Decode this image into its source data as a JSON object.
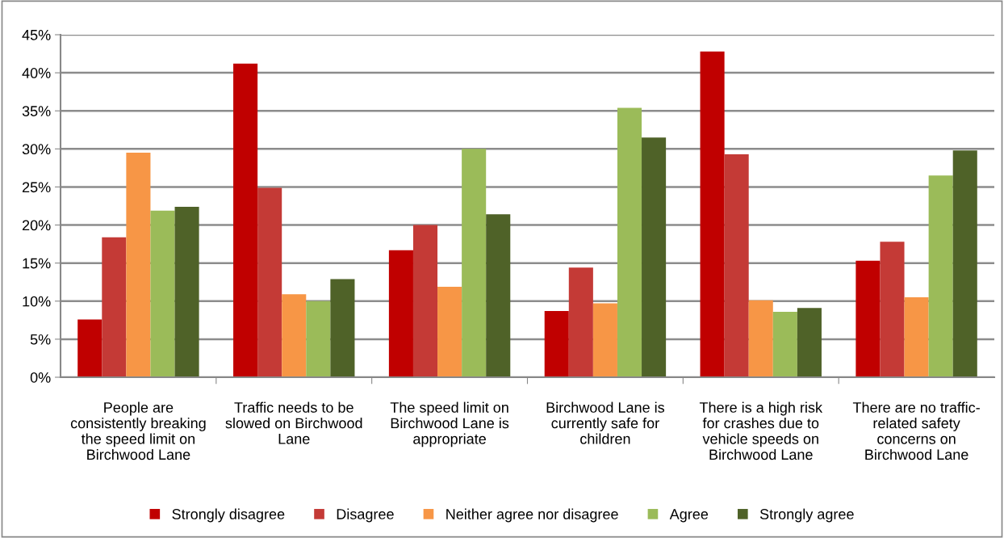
{
  "chart_data": {
    "type": "bar",
    "categories": [
      "People are\nconsistently breaking\nthe speed limit on\nBirchwood Lane",
      "Traffic needs to be\nslowed on Birchwood\nLane",
      "The speed limit on\nBirchwood Lane is\nappropriate",
      "Birchwood Lane is\ncurrently safe for\nchildren",
      "There is a high risk\nfor crashes due to\nvehicle speeds on\nBirchwood Lane",
      "There are no traffic-\nrelated safety\nconcerns on\nBirchwood Lane"
    ],
    "series": [
      {
        "name": "Strongly disagree",
        "color": "#c00000",
        "values": [
          7.6,
          41.2,
          16.7,
          8.7,
          42.8,
          15.3
        ]
      },
      {
        "name": "Disagree",
        "color": "#c43a36",
        "values": [
          18.4,
          24.9,
          20.0,
          14.4,
          29.3,
          17.8
        ]
      },
      {
        "name": "Neither agree nor disagree",
        "color": "#f79646",
        "values": [
          29.5,
          10.9,
          11.9,
          9.7,
          10.1,
          10.5
        ]
      },
      {
        "name": "Agree",
        "color": "#9bbb59",
        "values": [
          21.9,
          10.0,
          30.0,
          35.4,
          8.6,
          26.5
        ]
      },
      {
        "name": "Strongly agree",
        "color": "#4f6228",
        "values": [
          22.4,
          12.9,
          21.4,
          31.5,
          9.1,
          29.8
        ]
      }
    ],
    "ylim": [
      0,
      45
    ],
    "yticks": [
      {
        "value": 0,
        "label": "0%"
      },
      {
        "value": 5,
        "label": "5%"
      },
      {
        "value": 10,
        "label": "10%"
      },
      {
        "value": 15,
        "label": "15%"
      },
      {
        "value": 20,
        "label": "20%"
      },
      {
        "value": 25,
        "label": "25%"
      },
      {
        "value": 30,
        "label": "30%"
      },
      {
        "value": 35,
        "label": "35%"
      },
      {
        "value": 40,
        "label": "40%"
      },
      {
        "value": 45,
        "label": "45%"
      }
    ],
    "grid": "y",
    "legend": "bottom"
  }
}
